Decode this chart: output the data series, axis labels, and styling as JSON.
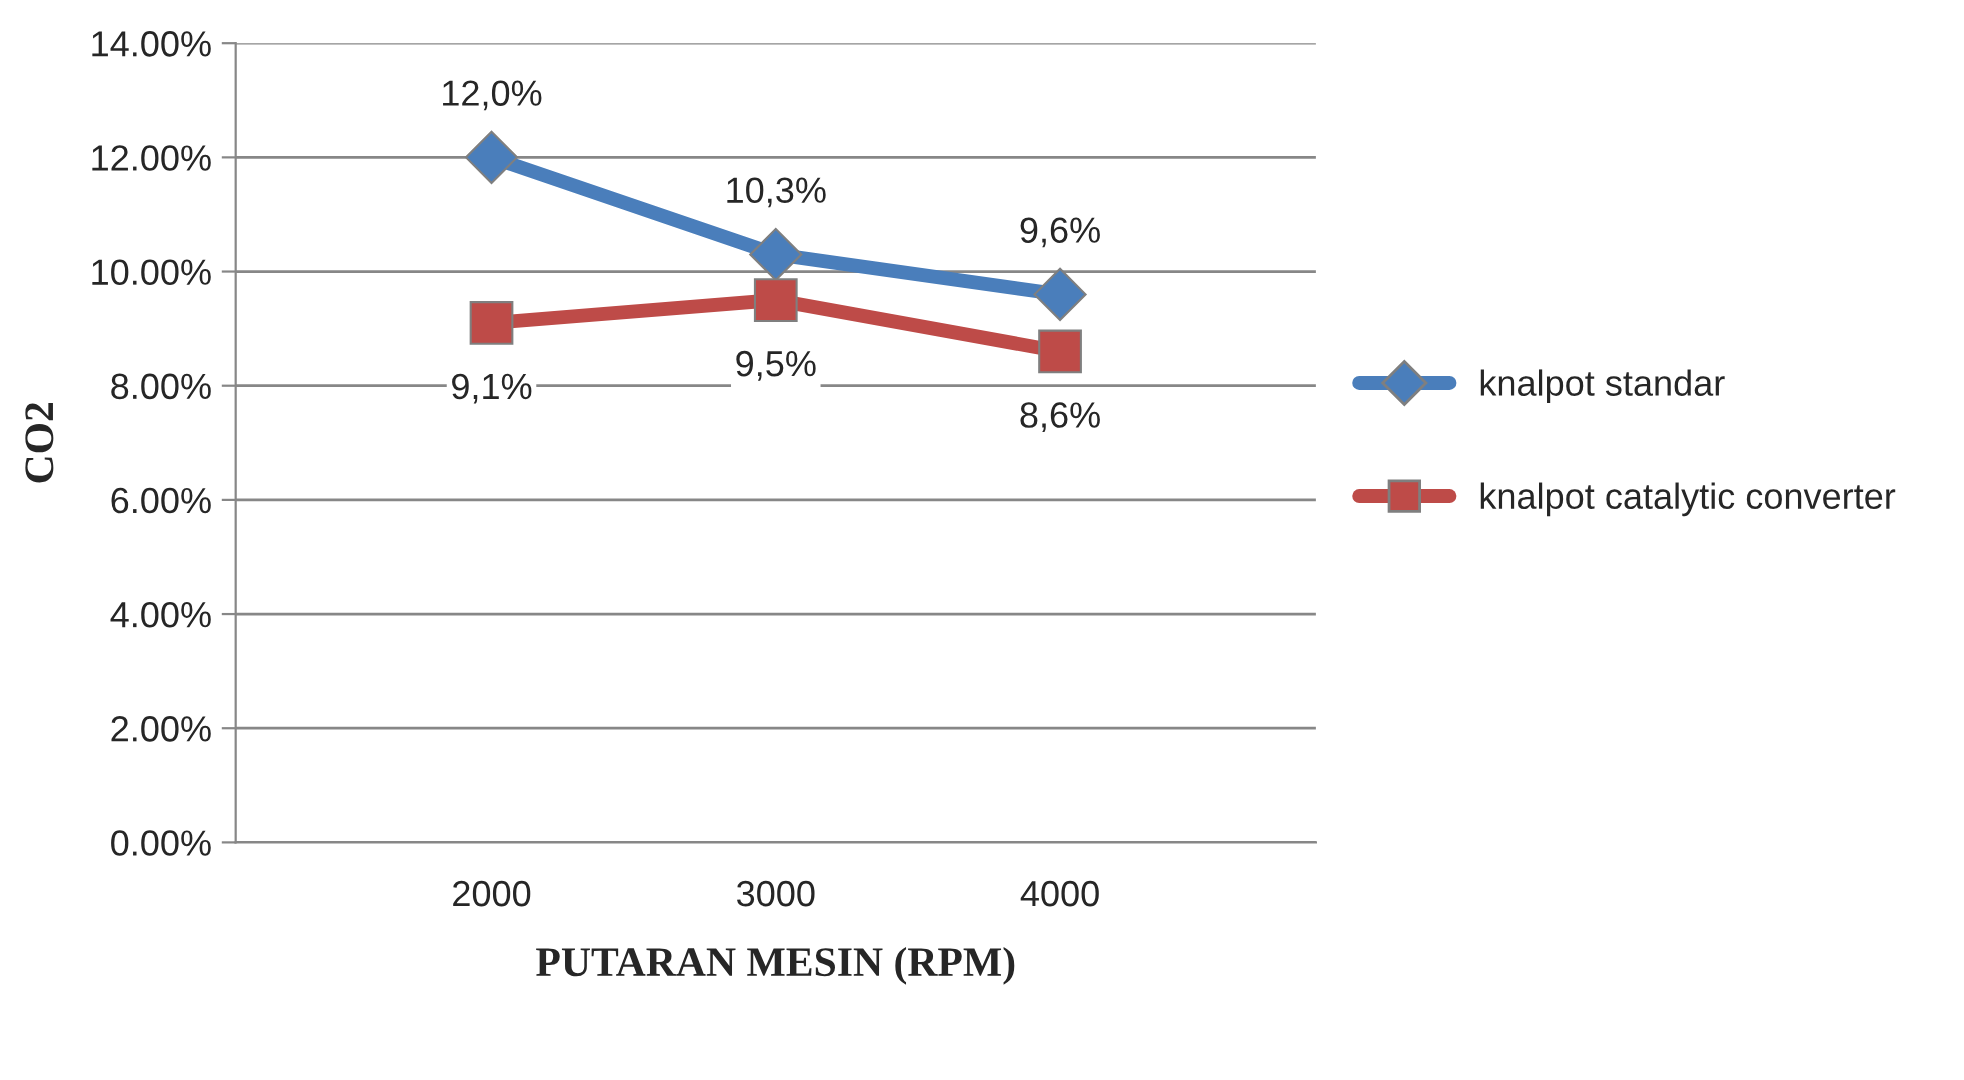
{
  "chart_data": {
    "type": "line",
    "xlabel": "PUTARAN MESIN (RPM)",
    "ylabel": "CO2",
    "categories": [
      "2000",
      "3000",
      "4000"
    ],
    "series": [
      {
        "name": "knalpot standar",
        "color": "#4a7ebb",
        "values": [
          12.0,
          10.3,
          9.6
        ],
        "value_labels": [
          "12,0%",
          "10,3%",
          "9,6%"
        ],
        "marker": "diamond"
      },
      {
        "name": "knalpot catalytic converter",
        "color": "#be4b48",
        "values": [
          9.1,
          9.5,
          8.6
        ],
        "value_labels": [
          "9,1%",
          "9,5%",
          "8,6%"
        ],
        "marker": "square"
      }
    ],
    "ylim": [
      0,
      14
    ],
    "yticks": [
      {
        "value": 0,
        "label": "0.00%"
      },
      {
        "value": 2,
        "label": "2.00%"
      },
      {
        "value": 4,
        "label": "4.00%"
      },
      {
        "value": 6,
        "label": "6.00%"
      },
      {
        "value": 8,
        "label": "8.00%"
      },
      {
        "value": 10,
        "label": "10.00%"
      },
      {
        "value": 12,
        "label": "12.00%"
      },
      {
        "value": 14,
        "label": "14.00%"
      }
    ],
    "grid": "y",
    "legend": "right",
    "line_style": "solid"
  }
}
